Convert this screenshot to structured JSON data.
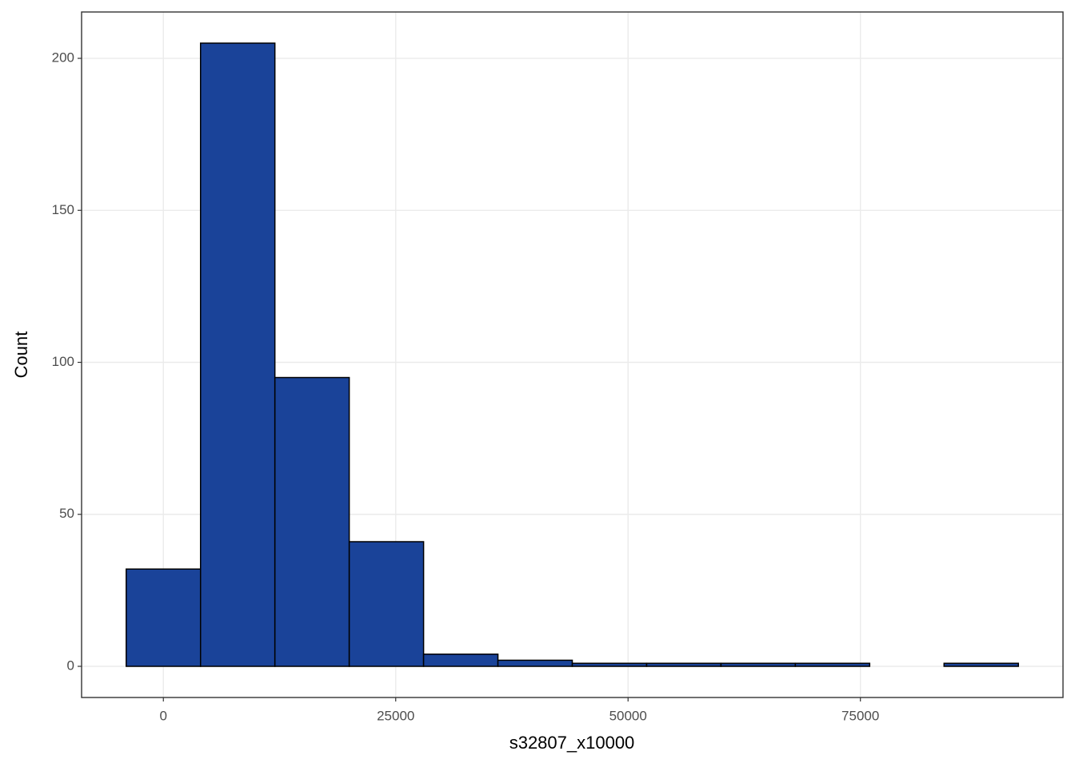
{
  "chart_data": {
    "type": "histogram",
    "x_label": "s32807_x10000",
    "y_label": "Count",
    "bins": [
      -4000,
      4000,
      12000,
      20000,
      28000,
      36000,
      44000,
      52000,
      60000,
      68000,
      76000,
      84000,
      92000
    ],
    "values": [
      32,
      205,
      95,
      41,
      4,
      2,
      1,
      1,
      1,
      1,
      0,
      1
    ],
    "color": "#1a4399",
    "edge_color": "#000000",
    "xlim": [
      -8800,
      96800
    ],
    "xticks": [
      0,
      25000,
      50000,
      75000
    ],
    "ylim": [
      -10.25,
      215.25
    ],
    "yticks": [
      0,
      50,
      100,
      150,
      200
    ],
    "grid": true
  }
}
